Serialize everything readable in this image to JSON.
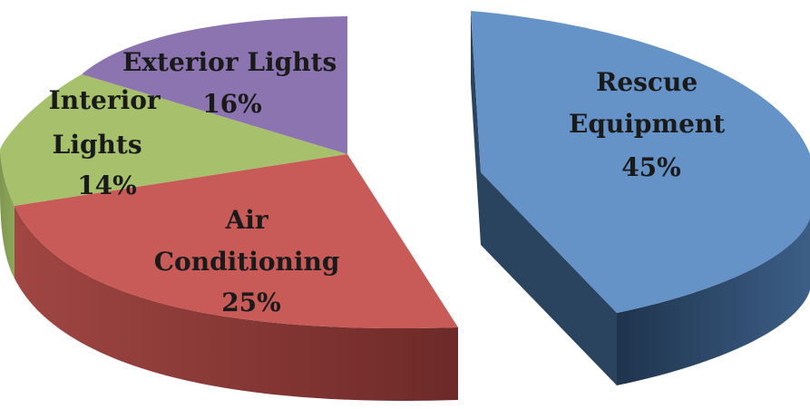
{
  "chart_data": {
    "type": "pie",
    "style": "3d-exploded",
    "title": "",
    "slices": [
      {
        "label_lines": [
          "Rescue",
          "Equipment"
        ],
        "percent_text": "45%",
        "value": 45,
        "color": "#6592c7",
        "side_color": "#2d4866"
      },
      {
        "label_lines": [
          "Air",
          "Conditioning"
        ],
        "percent_text": "25%",
        "value": 25,
        "color": "#c85a57",
        "side_color": "#7a302e"
      },
      {
        "label_lines": [
          "Interior",
          "Lights"
        ],
        "percent_text": "14%",
        "value": 14,
        "color": "#a6c06b",
        "side_color": "#6c7e3e"
      },
      {
        "label_lines": [
          "Exterior Lights"
        ],
        "percent_text": "16%",
        "value": 16,
        "color": "#8c74b1",
        "side_color": "#574a72"
      }
    ]
  }
}
